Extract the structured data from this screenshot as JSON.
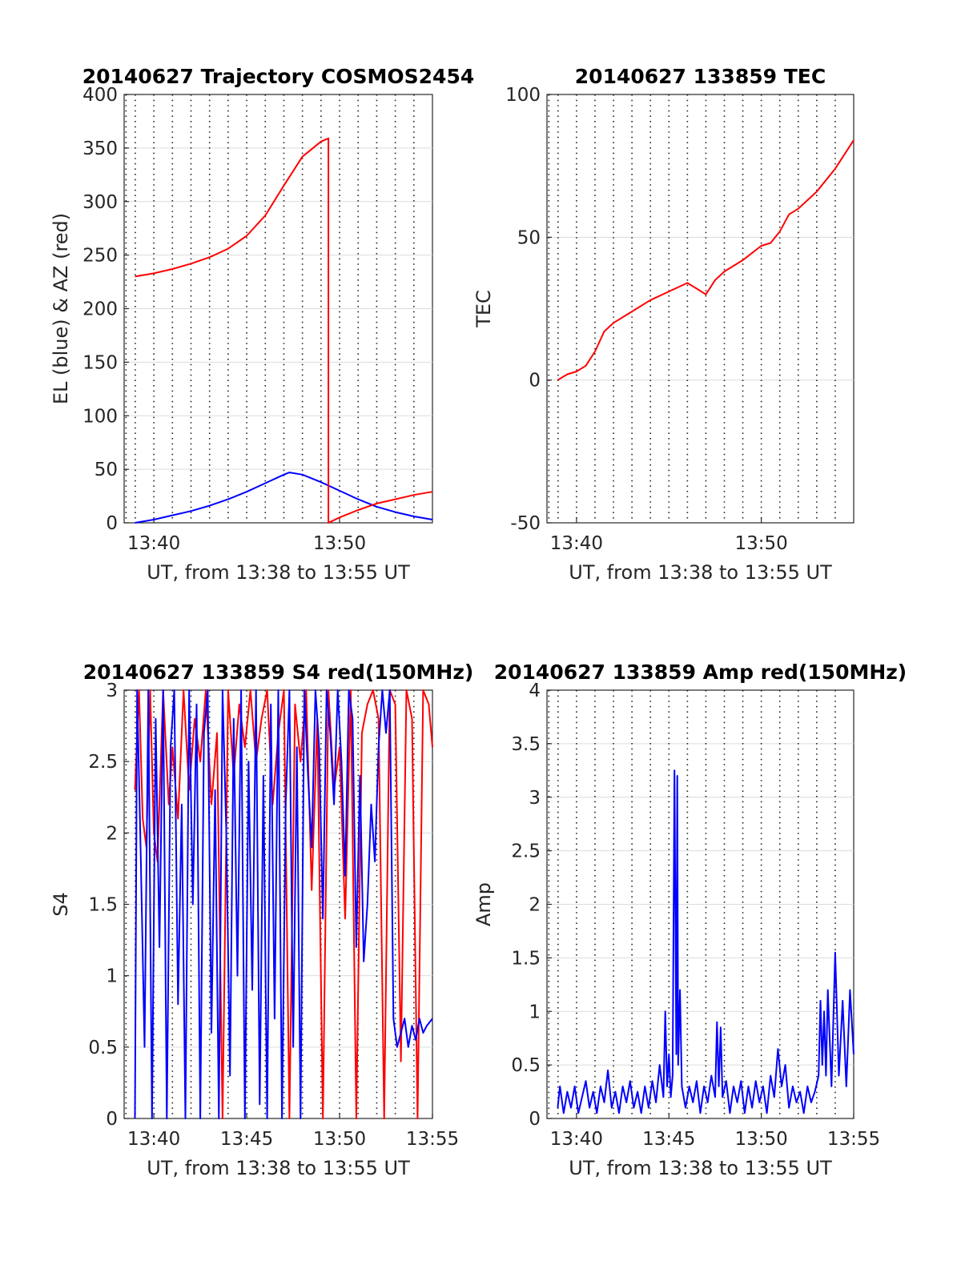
{
  "chart_data": [
    {
      "type": "line",
      "title": "20140627 Trajectory COSMOS2454",
      "xlabel": "UT, from 13:38 to 13:55 UT",
      "ylabel": "EL (blue) & AZ (red)",
      "x_unit": "minutes past 13:00",
      "xlim": [
        38.4,
        55
      ],
      "ylim": [
        0,
        400
      ],
      "xticks": [
        40,
        50
      ],
      "xtick_labels": [
        "13:40",
        "13:50"
      ],
      "yticks": [
        0,
        50,
        100,
        150,
        200,
        250,
        300,
        350,
        400
      ],
      "ytick_labels": [
        "0",
        "50",
        "100",
        "150",
        "200",
        "250",
        "300",
        "350",
        "400"
      ],
      "vgrid_x": [
        38.5,
        39,
        40,
        41,
        42,
        43,
        44,
        45,
        46,
        47,
        48,
        49,
        50,
        51,
        52,
        53,
        54,
        55
      ],
      "grid": true,
      "series": [
        {
          "name": "EL (blue)",
          "color": "#0000ff",
          "x": [
            38.98,
            40,
            41,
            42,
            43,
            44,
            45,
            46,
            47,
            47.3,
            48,
            49,
            50,
            51,
            52,
            53,
            54,
            55
          ],
          "y": [
            0,
            3,
            7,
            11,
            16,
            22,
            29,
            37,
            45,
            47,
            45,
            38,
            30,
            22,
            15,
            10,
            6,
            3
          ]
        },
        {
          "name": "AZ (red)",
          "color": "#ff0000",
          "x": [
            38.98,
            40,
            41,
            42,
            43,
            44,
            45,
            46,
            47,
            48,
            49,
            49.4,
            49.4,
            50,
            51,
            52,
            53,
            54,
            55
          ],
          "y": [
            230,
            233,
            237,
            242,
            248,
            256,
            268,
            287,
            315,
            342,
            356,
            359,
            0,
            5,
            12,
            18,
            22,
            26,
            29
          ]
        }
      ]
    },
    {
      "type": "line",
      "title": "20140627 133859 TEC",
      "xlabel": "UT, from 13:38 to 13:55 UT",
      "ylabel": "TEC",
      "x_unit": "minutes past 13:00",
      "xlim": [
        38.4,
        55
      ],
      "ylim": [
        -50,
        100
      ],
      "xticks": [
        40,
        50
      ],
      "xtick_labels": [
        "13:40",
        "13:50"
      ],
      "yticks": [
        -50,
        0,
        50,
        100
      ],
      "ytick_labels": [
        "-50",
        "0",
        "50",
        "100"
      ],
      "vgrid_x": [
        38.5,
        39,
        40,
        41,
        42,
        43,
        44,
        45,
        46,
        47,
        48,
        49,
        50,
        51,
        52,
        53,
        54,
        55
      ],
      "grid": true,
      "series": [
        {
          "name": "TEC",
          "color": "#ff0000",
          "x": [
            38.98,
            39.5,
            40,
            40.5,
            41,
            41.5,
            42,
            43,
            44,
            45,
            46,
            46.5,
            47,
            47.5,
            48,
            49,
            50,
            50.5,
            51,
            51.5,
            52,
            53,
            54,
            55
          ],
          "y": [
            0,
            2,
            3,
            5,
            10,
            17,
            20,
            24,
            28,
            31,
            34,
            32,
            30,
            35,
            38,
            42,
            47,
            48,
            52,
            58,
            60,
            66,
            74,
            84
          ]
        }
      ]
    },
    {
      "type": "line",
      "title": "20140627 133859 S4 red(150MHz)",
      "xlabel": "UT, from 13:38 to 13:55 UT",
      "ylabel": "S4",
      "x_unit": "minutes past 13:00",
      "xlim": [
        38.4,
        55
      ],
      "ylim": [
        0,
        3
      ],
      "xticks": [
        40,
        45,
        50,
        55
      ],
      "xtick_labels": [
        "13:40",
        "13:45",
        "13:50",
        "13:55"
      ],
      "yticks": [
        0,
        0.5,
        1,
        1.5,
        2,
        2.5,
        3
      ],
      "ytick_labels": [
        "0",
        "0.5",
        "1",
        "1.5",
        "2",
        "2.5",
        "3"
      ],
      "vgrid_x": [
        38.5,
        39,
        40,
        41,
        42,
        43,
        44,
        45,
        46,
        47,
        48,
        49,
        50,
        51,
        52,
        53,
        54,
        55
      ],
      "grid": true,
      "series": [
        {
          "name": "S4 red",
          "color": "#ff0000",
          "x": [
            38.98,
            39.2,
            39.4,
            39.6,
            39.8,
            40.0,
            40.2,
            40.5,
            40.8,
            41.0,
            41.3,
            41.6,
            41.9,
            42.2,
            42.5,
            42.8,
            43.1,
            43.4,
            43.7,
            44.0,
            44.3,
            44.6,
            44.9,
            45.2,
            45.5,
            45.8,
            46.1,
            46.4,
            46.7,
            47.0,
            47.3,
            47.6,
            47.9,
            48.2,
            48.5,
            48.8,
            49.1,
            49.4,
            49.7,
            50.0,
            50.3,
            50.6,
            50.9,
            51.2,
            51.5,
            51.8,
            52.1,
            52.4,
            52.7,
            53.0,
            53.3,
            53.6,
            53.9,
            54.2,
            54.5,
            54.8,
            55.0
          ],
          "y": [
            2.3,
            3.0,
            2.1,
            1.9,
            3.0,
            2.0,
            1.8,
            3.0,
            2.2,
            2.6,
            2.1,
            3.0,
            2.3,
            2.8,
            2.5,
            3.0,
            2.2,
            2.7,
            0.0,
            3.0,
            2.4,
            2.9,
            2.6,
            3.0,
            2.5,
            2.8,
            3.0,
            2.2,
            2.7,
            3.0,
            0.0,
            2.9,
            2.5,
            3.0,
            1.6,
            2.8,
            0.0,
            3.0,
            2.3,
            2.6,
            1.4,
            3.0,
            0.0,
            2.7,
            2.9,
            3.0,
            2.8,
            0.0,
            3.0,
            2.9,
            0.4,
            3.0,
            2.8,
            0.0,
            3.0,
            2.9,
            2.6
          ]
        },
        {
          "name": "S4 blue",
          "color": "#0000ff",
          "x": [
            38.98,
            39.1,
            39.3,
            39.5,
            39.7,
            39.9,
            40.1,
            40.3,
            40.5,
            40.7,
            40.9,
            41.1,
            41.3,
            41.5,
            41.7,
            41.9,
            42.1,
            42.3,
            42.5,
            42.7,
            42.9,
            43.1,
            43.3,
            43.5,
            43.7,
            43.9,
            44.1,
            44.3,
            44.5,
            44.7,
            44.9,
            45.1,
            45.3,
            45.5,
            45.7,
            45.9,
            46.1,
            46.3,
            46.5,
            46.7,
            46.9,
            47.1,
            47.3,
            47.5,
            47.7,
            47.9,
            48.1,
            48.3,
            48.5,
            48.7,
            48.9,
            49.1,
            49.3,
            49.5,
            49.7,
            49.9,
            50.1,
            50.3,
            50.5,
            50.7,
            50.9,
            51.1,
            51.3,
            51.5,
            51.7,
            51.9,
            52.1,
            52.3,
            52.5,
            52.7,
            52.9,
            53.1,
            53.3,
            53.5,
            53.7,
            53.9,
            54.1,
            54.3,
            54.5,
            54.7,
            55.0
          ],
          "y": [
            0.0,
            3.0,
            1.8,
            0.5,
            3.0,
            0.0,
            2.8,
            1.2,
            3.0,
            0.0,
            2.6,
            3.0,
            0.8,
            2.2,
            0.0,
            3.0,
            1.5,
            2.9,
            0.0,
            2.7,
            3.0,
            0.6,
            2.3,
            0.0,
            3.0,
            2.0,
            0.3,
            2.8,
            1.0,
            3.0,
            0.0,
            2.5,
            0.9,
            3.0,
            0.1,
            2.4,
            0.0,
            2.9,
            0.7,
            3.0,
            0.0,
            2.2,
            3.0,
            0.5,
            2.6,
            0.0,
            3.0,
            2.4,
            1.9,
            3.0,
            2.6,
            1.4,
            3.0,
            2.7,
            2.2,
            3.0,
            2.5,
            1.7,
            3.0,
            2.8,
            1.2,
            2.4,
            1.1,
            1.5,
            2.2,
            1.8,
            2.6,
            3.0,
            2.7,
            3.0,
            0.7,
            0.5,
            0.6,
            0.7,
            0.5,
            0.65,
            0.55,
            0.7,
            0.6,
            0.65,
            0.7
          ]
        }
      ]
    },
    {
      "type": "line",
      "title": "20140627 133859 Amp red(150MHz)",
      "xlabel": "UT, from 13:38 to 13:55 UT",
      "ylabel": "Amp",
      "x_unit": "minutes past 13:00",
      "xlim": [
        38.4,
        55
      ],
      "ylim": [
        0,
        4
      ],
      "xticks": [
        40,
        45,
        50,
        55
      ],
      "xtick_labels": [
        "13:40",
        "13:45",
        "13:50",
        "13:55"
      ],
      "yticks": [
        0,
        0.5,
        1,
        1.5,
        2,
        2.5,
        3,
        3.5,
        4
      ],
      "ytick_labels": [
        "0",
        "0.5",
        "1",
        "1.5",
        "2",
        "2.5",
        "3",
        "3.5",
        "4"
      ],
      "vgrid_x": [
        38.5,
        39,
        40,
        41,
        42,
        43,
        44,
        45,
        46,
        47,
        48,
        49,
        50,
        51,
        52,
        53,
        54,
        55
      ],
      "grid": true,
      "series": [
        {
          "name": "Amp",
          "color": "#0000ff",
          "x": [
            38.98,
            39.1,
            39.3,
            39.5,
            39.7,
            39.9,
            40.1,
            40.3,
            40.5,
            40.7,
            40.9,
            41.1,
            41.3,
            41.5,
            41.7,
            41.9,
            42.1,
            42.3,
            42.5,
            42.7,
            42.9,
            43.1,
            43.3,
            43.5,
            43.7,
            43.9,
            44.1,
            44.3,
            44.5,
            44.7,
            44.8,
            44.9,
            45.0,
            45.1,
            45.2,
            45.3,
            45.4,
            45.45,
            45.5,
            45.6,
            45.7,
            45.9,
            46.1,
            46.3,
            46.5,
            46.7,
            46.9,
            47.1,
            47.3,
            47.5,
            47.6,
            47.7,
            47.8,
            47.9,
            48.1,
            48.3,
            48.5,
            48.7,
            48.9,
            49.1,
            49.3,
            49.5,
            49.7,
            49.9,
            50.1,
            50.3,
            50.5,
            50.7,
            50.9,
            51.1,
            51.3,
            51.5,
            51.7,
            51.9,
            52.1,
            52.3,
            52.5,
            52.7,
            52.9,
            53.1,
            53.2,
            53.3,
            53.4,
            53.5,
            53.6,
            53.8,
            54.0,
            54.2,
            54.4,
            54.6,
            54.8,
            55.0
          ],
          "y": [
            0.1,
            0.3,
            0.05,
            0.25,
            0.1,
            0.3,
            0.05,
            0.2,
            0.35,
            0.1,
            0.25,
            0.05,
            0.3,
            0.15,
            0.45,
            0.1,
            0.25,
            0.05,
            0.3,
            0.15,
            0.35,
            0.1,
            0.25,
            0.05,
            0.3,
            0.1,
            0.35,
            0.15,
            0.5,
            0.2,
            1.0,
            0.3,
            0.6,
            0.2,
            0.4,
            3.25,
            0.6,
            3.2,
            0.5,
            1.2,
            0.3,
            0.1,
            0.3,
            0.15,
            0.35,
            0.05,
            0.3,
            0.15,
            0.4,
            0.2,
            0.9,
            0.3,
            0.85,
            0.2,
            0.35,
            0.05,
            0.3,
            0.15,
            0.35,
            0.05,
            0.3,
            0.1,
            0.35,
            0.15,
            0.3,
            0.05,
            0.4,
            0.2,
            0.65,
            0.3,
            0.5,
            0.1,
            0.3,
            0.15,
            0.25,
            0.05,
            0.3,
            0.15,
            0.25,
            0.4,
            1.1,
            0.5,
            1.0,
            0.4,
            1.2,
            0.3,
            1.55,
            0.4,
            1.1,
            0.3,
            1.2,
            0.6
          ]
        }
      ]
    }
  ]
}
